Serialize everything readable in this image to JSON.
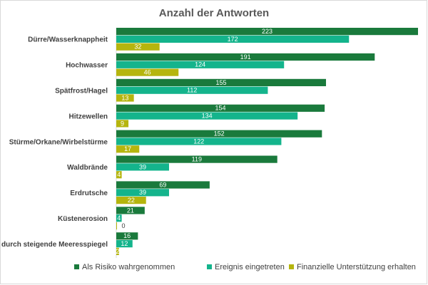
{
  "chart_data": {
    "type": "bar",
    "orientation": "horizontal",
    "title": "Anzahl der Antworten",
    "categories": [
      "Dürre/Wasserknappheit",
      "Hochwasser",
      "Spätfrost/Hagel",
      "Hitzewellen",
      "Stürme/Orkane/Wirbelstürme",
      "Waldbrände",
      "Erdrutsche",
      "Küstenerosion",
      "Überflutung durch steigende Meeresspiegel"
    ],
    "series": [
      {
        "name": "Als Risiko wahrgenommen",
        "color": "#1a7a3c",
        "values": [
          223,
          191,
          155,
          154,
          152,
          119,
          69,
          21,
          16
        ]
      },
      {
        "name": "Ereignis eingetreten",
        "color": "#14b48c",
        "values": [
          172,
          124,
          112,
          134,
          122,
          39,
          39,
          4,
          12
        ]
      },
      {
        "name": "Finanzielle Unterstützung erhalten",
        "color": "#b5b50e",
        "values": [
          32,
          46,
          13,
          9,
          17,
          4,
          22,
          0,
          2
        ]
      }
    ],
    "xlim": [
      0,
      250
    ],
    "grid": false,
    "legend": "bottom",
    "data_labels": true
  }
}
